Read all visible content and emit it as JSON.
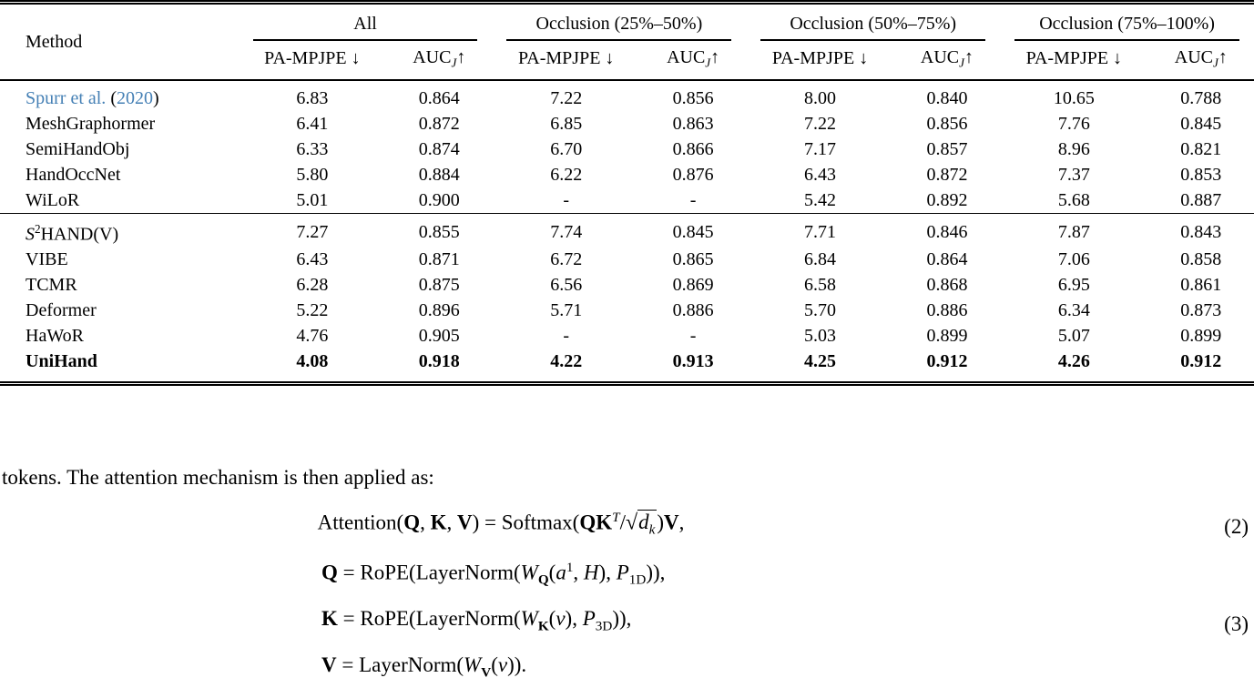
{
  "table": {
    "method_header": "Method",
    "groups": [
      {
        "label": "All"
      },
      {
        "label": "Occlusion (25%–50%)"
      },
      {
        "label": "Occlusion (50%–75%)"
      },
      {
        "label": "Occlusion (75%–100%)"
      }
    ],
    "metric_pa": "PA-MPJPE",
    "metric_pa_arrow": "↓",
    "metric_auc": "AUC",
    "metric_auc_sub": "J",
    "metric_auc_arrow": "↑",
    "sections": [
      {
        "rows": [
          {
            "method_parts": [
              {
                "t": "Spurr et al. ",
                "c": "link",
                "link": true
              },
              {
                "t": "("
              },
              {
                "t": "2020",
                "c": "link",
                "link": true
              },
              {
                "t": ")"
              }
            ],
            "values": [
              "6.83",
              "0.864",
              "7.22",
              "0.856",
              "8.00",
              "0.840",
              "10.65",
              "0.788"
            ]
          },
          {
            "method_parts": [
              {
                "t": "MeshGraphormer"
              }
            ],
            "values": [
              "6.41",
              "0.872",
              "6.85",
              "0.863",
              "7.22",
              "0.856",
              "7.76",
              "0.845"
            ]
          },
          {
            "method_parts": [
              {
                "t": "SemiHandObj"
              }
            ],
            "values": [
              "6.33",
              "0.874",
              "6.70",
              "0.866",
              "7.17",
              "0.857",
              "8.96",
              "0.821"
            ]
          },
          {
            "method_parts": [
              {
                "t": "HandOccNet"
              }
            ],
            "values": [
              "5.80",
              "0.884",
              "6.22",
              "0.876",
              "6.43",
              "0.872",
              "7.37",
              "0.853"
            ]
          },
          {
            "method_parts": [
              {
                "t": "WiLoR"
              }
            ],
            "values": [
              "5.01",
              "0.900",
              "-",
              "-",
              "5.42",
              "0.892",
              "5.68",
              "0.887"
            ]
          }
        ]
      },
      {
        "rows": [
          {
            "method_parts": [
              {
                "t": "S",
                "c": "it"
              },
              {
                "t": "2",
                "c": "sup"
              },
              {
                "t": "HAND(V)"
              }
            ],
            "values": [
              "7.27",
              "0.855",
              "7.74",
              "0.845",
              "7.71",
              "0.846",
              "7.87",
              "0.843"
            ]
          },
          {
            "method_parts": [
              {
                "t": "VIBE"
              }
            ],
            "values": [
              "6.43",
              "0.871",
              "6.72",
              "0.865",
              "6.84",
              "0.864",
              "7.06",
              "0.858"
            ]
          },
          {
            "method_parts": [
              {
                "t": "TCMR"
              }
            ],
            "values": [
              "6.28",
              "0.875",
              "6.56",
              "0.869",
              "6.58",
              "0.868",
              "6.95",
              "0.861"
            ]
          },
          {
            "method_parts": [
              {
                "t": "Deformer"
              }
            ],
            "values": [
              "5.22",
              "0.896",
              "5.71",
              "0.886",
              "5.70",
              "0.886",
              "6.34",
              "0.873"
            ]
          },
          {
            "method_parts": [
              {
                "t": "HaWoR"
              }
            ],
            "values": [
              "4.76",
              "0.905",
              "-",
              "-",
              "5.03",
              "0.899",
              "5.07",
              "0.899"
            ]
          },
          {
            "method_parts": [
              {
                "t": "UniHand"
              }
            ],
            "values": [
              "4.08",
              "0.918",
              "4.22",
              "0.913",
              "4.25",
              "0.912",
              "4.26",
              "0.912"
            ],
            "bold": true
          }
        ]
      }
    ]
  },
  "paragraph": "tokens. The attention mechanism is then applied as:",
  "equations": {
    "eq2_number": "(2)",
    "eq3_number": "(3)",
    "eq2": [
      {
        "t": "Attention("
      },
      {
        "t": "Q",
        "c": "bf"
      },
      {
        "t": ", "
      },
      {
        "t": "K",
        "c": "bf"
      },
      {
        "t": ", "
      },
      {
        "t": "V",
        "c": "bf"
      },
      {
        "t": ") = Softmax("
      },
      {
        "t": "QK",
        "c": "bf"
      },
      {
        "t": "T",
        "c": "sup it"
      },
      {
        "t": "/"
      },
      {
        "t": "√",
        "c": "sqrt"
      },
      {
        "g": [
          {
            "t": "d",
            "c": "it"
          },
          {
            "t": "k",
            "c": "sub it"
          }
        ],
        "c": "ov"
      },
      {
        "t": ")"
      },
      {
        "t": "V",
        "c": "bf"
      },
      {
        "t": ","
      }
    ],
    "q_line": [
      {
        "t": "Q",
        "c": "bf"
      },
      {
        "t": " = RoPE(LayerNorm("
      },
      {
        "t": "W",
        "c": "it"
      },
      {
        "t": "Q",
        "c": "sub bf"
      },
      {
        "t": "("
      },
      {
        "t": "a",
        "c": "it"
      },
      {
        "t": "1",
        "c": "sup"
      },
      {
        "t": ", "
      },
      {
        "t": "H",
        "c": "it"
      },
      {
        "t": "), "
      },
      {
        "t": "P",
        "c": "it"
      },
      {
        "t": "1D",
        "c": "sub"
      },
      {
        "t": ")),"
      }
    ],
    "k_line": [
      {
        "t": "K",
        "c": "bf"
      },
      {
        "t": " = RoPE(LayerNorm("
      },
      {
        "t": "W",
        "c": "it"
      },
      {
        "t": "K",
        "c": "sub bf"
      },
      {
        "t": "("
      },
      {
        "t": "v",
        "c": "it"
      },
      {
        "t": "), "
      },
      {
        "t": "P",
        "c": "it"
      },
      {
        "t": "3D",
        "c": "sub"
      },
      {
        "t": ")),"
      }
    ],
    "v_line": [
      {
        "t": "V",
        "c": "bf"
      },
      {
        "t": " = LayerNorm("
      },
      {
        "t": "W",
        "c": "it"
      },
      {
        "t": "V",
        "c": "sub bf"
      },
      {
        "t": "("
      },
      {
        "t": "v",
        "c": "it"
      },
      {
        "t": "))."
      }
    ]
  },
  "colors": {
    "link": "#4580b5",
    "text": "#000000"
  }
}
